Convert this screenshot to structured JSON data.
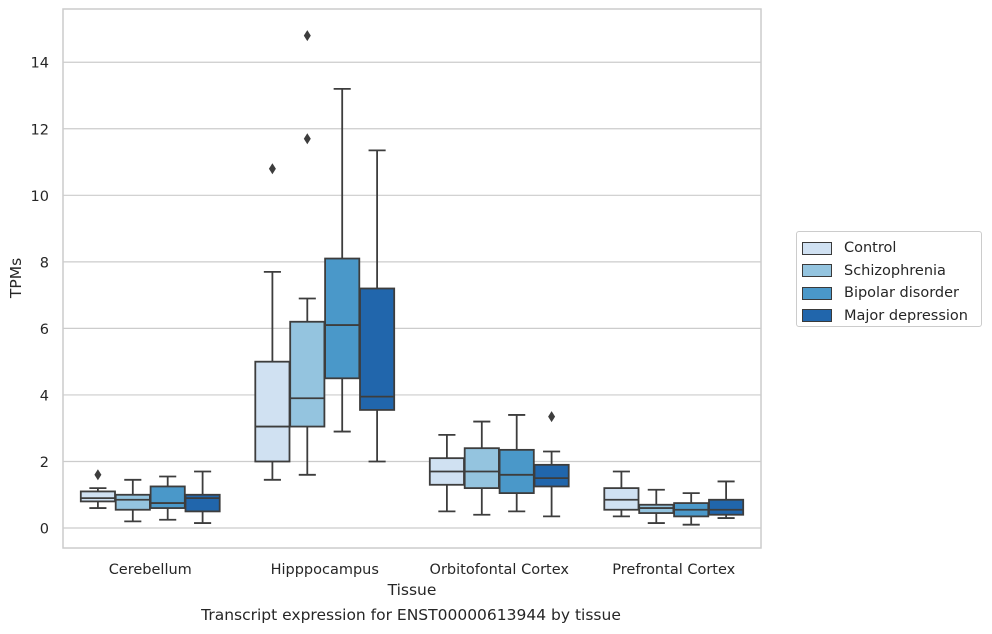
{
  "chart_data": {
    "type": "box",
    "title": "Transcript expression for ENST00000613944 by tissue",
    "xlabel": "Tissue",
    "ylabel": "TPMs",
    "ylim": [
      -0.6,
      15.6
    ],
    "yticks": [
      0,
      2,
      4,
      6,
      8,
      10,
      12,
      14
    ],
    "grid": true,
    "legend_position": "right",
    "categories": [
      "Cerebellum",
      "Hipppocampus",
      "Orbitofontal Cortex",
      "Prefrontal Cortex"
    ],
    "series": [
      {
        "name": "Control",
        "color": "#d0e1f2",
        "boxes": [
          {
            "whislo": 0.6,
            "q1": 0.8,
            "med": 0.9,
            "q3": 1.1,
            "whishi": 1.2,
            "fliers": [
              1.6
            ]
          },
          {
            "whislo": 1.45,
            "q1": 2.0,
            "med": 3.05,
            "q3": 5.0,
            "whishi": 7.7,
            "fliers": [
              10.8
            ]
          },
          {
            "whislo": 0.5,
            "q1": 1.3,
            "med": 1.7,
            "q3": 2.1,
            "whishi": 2.8,
            "fliers": []
          },
          {
            "whislo": 0.35,
            "q1": 0.55,
            "med": 0.85,
            "q3": 1.2,
            "whishi": 1.7,
            "fliers": []
          }
        ]
      },
      {
        "name": "Schizophrenia",
        "color": "#94c4df",
        "boxes": [
          {
            "whislo": 0.2,
            "q1": 0.55,
            "med": 0.85,
            "q3": 1.0,
            "whishi": 1.45,
            "fliers": []
          },
          {
            "whislo": 1.6,
            "q1": 3.05,
            "med": 3.9,
            "q3": 6.2,
            "whishi": 6.9,
            "fliers": [
              11.7,
              14.8
            ]
          },
          {
            "whislo": 0.4,
            "q1": 1.2,
            "med": 1.7,
            "q3": 2.4,
            "whishi": 3.2,
            "fliers": []
          },
          {
            "whislo": 0.15,
            "q1": 0.45,
            "med": 0.6,
            "q3": 0.7,
            "whishi": 1.15,
            "fliers": []
          }
        ]
      },
      {
        "name": "Bipolar disorder",
        "color": "#4a98c9",
        "boxes": [
          {
            "whislo": 0.25,
            "q1": 0.6,
            "med": 0.75,
            "q3": 1.25,
            "whishi": 1.55,
            "fliers": []
          },
          {
            "whislo": 2.9,
            "q1": 4.5,
            "med": 6.1,
            "q3": 8.1,
            "whishi": 13.2,
            "fliers": []
          },
          {
            "whislo": 0.5,
            "q1": 1.05,
            "med": 1.6,
            "q3": 2.35,
            "whishi": 3.4,
            "fliers": []
          },
          {
            "whislo": 0.1,
            "q1": 0.35,
            "med": 0.55,
            "q3": 0.75,
            "whishi": 1.05,
            "fliers": []
          }
        ]
      },
      {
        "name": "Major depression",
        "color": "#2166ac",
        "boxes": [
          {
            "whislo": 0.15,
            "q1": 0.5,
            "med": 0.9,
            "q3": 1.0,
            "whishi": 1.7,
            "fliers": []
          },
          {
            "whislo": 2.0,
            "q1": 3.55,
            "med": 3.95,
            "q3": 7.2,
            "whishi": 11.35,
            "fliers": []
          },
          {
            "whislo": 0.35,
            "q1": 1.25,
            "med": 1.5,
            "q3": 1.9,
            "whishi": 2.3,
            "fliers": [
              3.35
            ]
          },
          {
            "whislo": 0.3,
            "q1": 0.4,
            "med": 0.55,
            "q3": 0.85,
            "whishi": 1.4,
            "fliers": []
          }
        ]
      }
    ]
  }
}
